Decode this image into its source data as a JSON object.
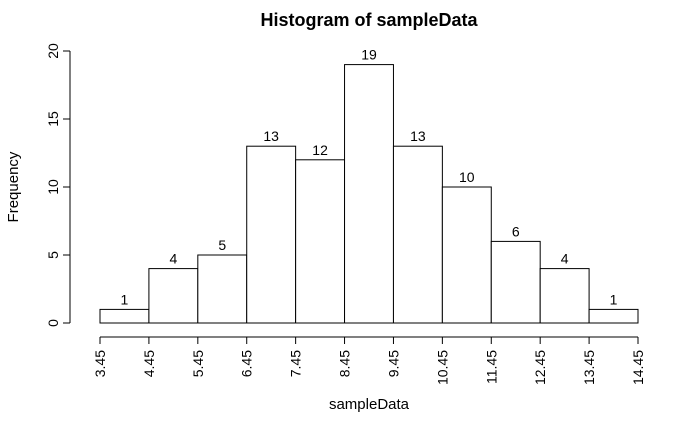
{
  "chart_data": {
    "type": "bar",
    "title": "Histogram of sampleData",
    "xlabel": "sampleData",
    "ylabel": "Frequency",
    "breaks": [
      3.45,
      4.45,
      5.45,
      6.45,
      7.45,
      8.45,
      9.45,
      10.45,
      11.45,
      12.45,
      13.45,
      14.45
    ],
    "x_tick_labels": [
      "3.45",
      "4.45",
      "5.45",
      "6.45",
      "7.45",
      "8.45",
      "9.45",
      "10.45",
      "11.45",
      "12.45",
      "13.45",
      "14.45"
    ],
    "values": [
      1,
      4,
      5,
      13,
      12,
      19,
      13,
      10,
      6,
      4,
      1
    ],
    "ylim": [
      0,
      20
    ],
    "y_ticks": [
      0,
      5,
      10,
      15,
      20
    ],
    "y_tick_labels": [
      "0",
      "5",
      "10",
      "15",
      "20"
    ],
    "grid": false,
    "colors": {
      "bar_fill": "#ffffff",
      "bar_stroke": "#000000"
    }
  }
}
